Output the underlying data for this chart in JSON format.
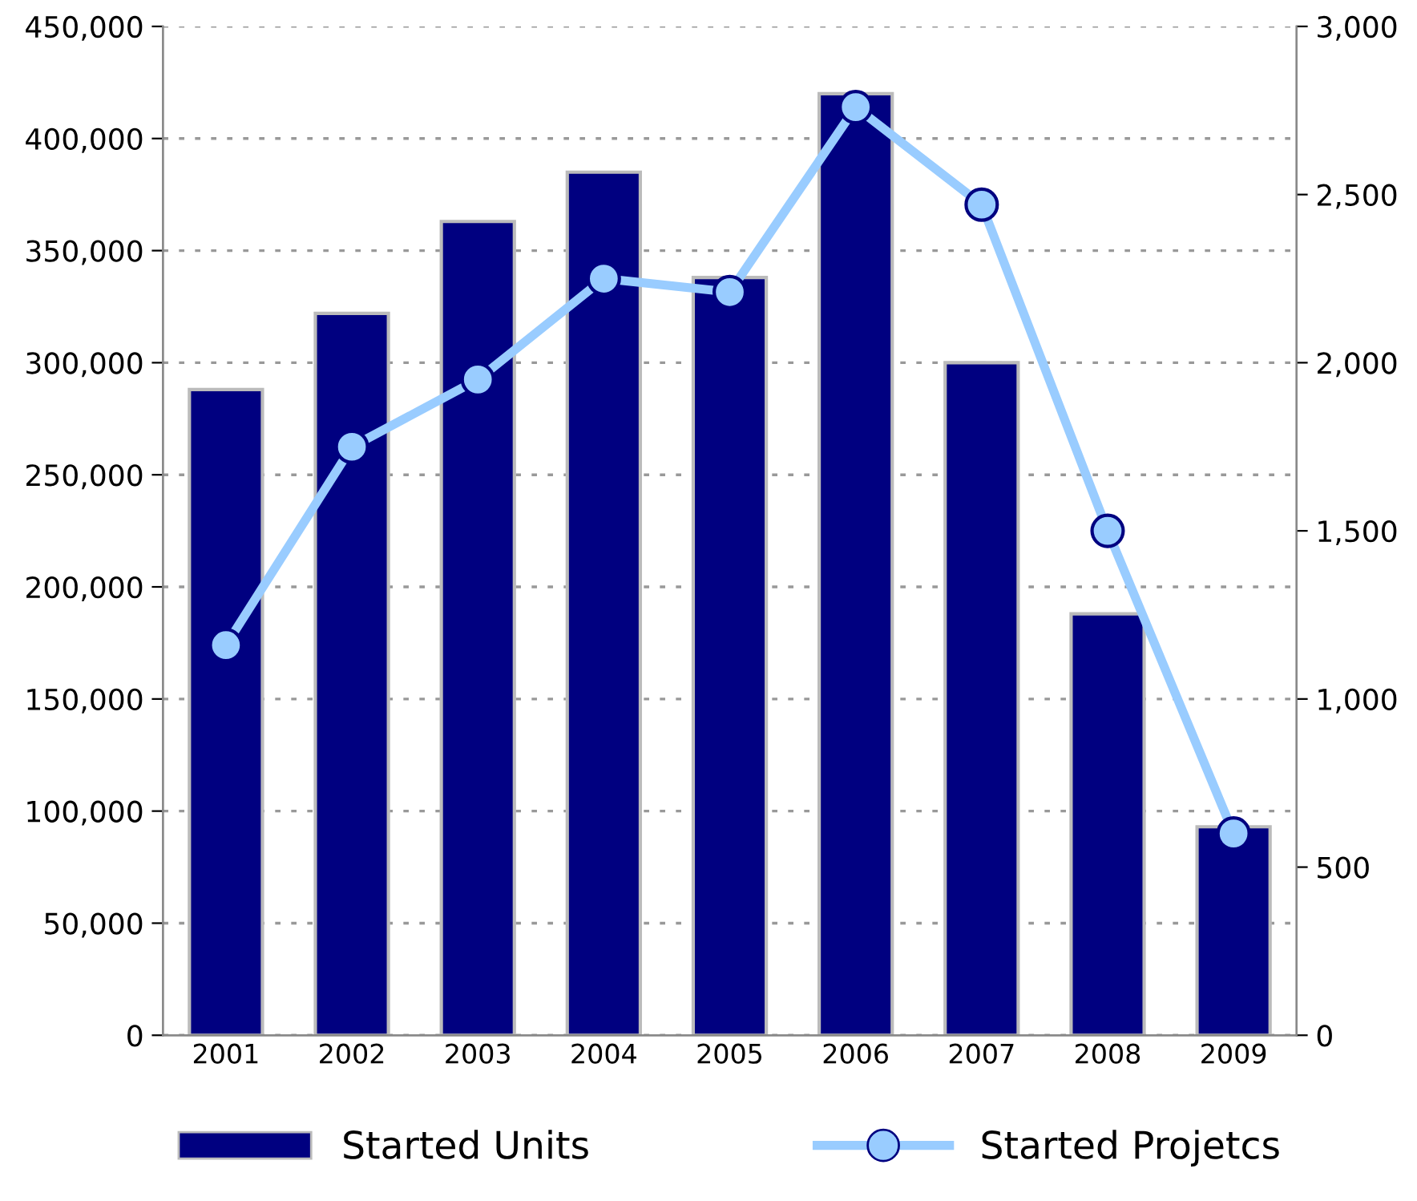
{
  "chart_data": {
    "type": "bar",
    "categories": [
      "2001",
      "2002",
      "2003",
      "2004",
      "2005",
      "2006",
      "2007",
      "2008",
      "2009"
    ],
    "series": [
      {
        "name": "Started Units",
        "color": "#000080",
        "values": [
          288000,
          322000,
          363000,
          385000,
          338000,
          420000,
          300000,
          188000,
          93000
        ]
      },
      {
        "name": "Started Projetcs",
        "type": "line",
        "axis": "y2",
        "color": "#99ccff",
        "marker": "circle",
        "values": [
          1160,
          1750,
          1950,
          2250,
          2210,
          2760,
          2470,
          1500,
          600
        ]
      }
    ],
    "ylim": [
      0,
      450000
    ],
    "yticks": [
      {
        "value": 0,
        "label": "0"
      },
      {
        "value": 50000,
        "label": "50,000"
      },
      {
        "value": 100000,
        "label": "100,000"
      },
      {
        "value": 150000,
        "label": "150,000"
      },
      {
        "value": 200000,
        "label": "200,000"
      },
      {
        "value": 250000,
        "label": "250,000"
      },
      {
        "value": 300000,
        "label": "300,000"
      },
      {
        "value": 350000,
        "label": "350,000"
      },
      {
        "value": 400000,
        "label": "400,000"
      },
      {
        "value": 450000,
        "label": "450,000"
      }
    ],
    "y2lim": [
      0,
      3000
    ],
    "y2ticks": [
      0,
      500,
      {
        "value": 1000,
        "label": "1,000"
      },
      {
        "value": 1500,
        "label": "1,500"
      },
      {
        "value": 2000,
        "label": "2,000"
      },
      {
        "value": 2500,
        "label": "2,500"
      },
      {
        "value": 3000,
        "label": "3,000"
      }
    ],
    "grid": "y",
    "legend": "bottom"
  }
}
